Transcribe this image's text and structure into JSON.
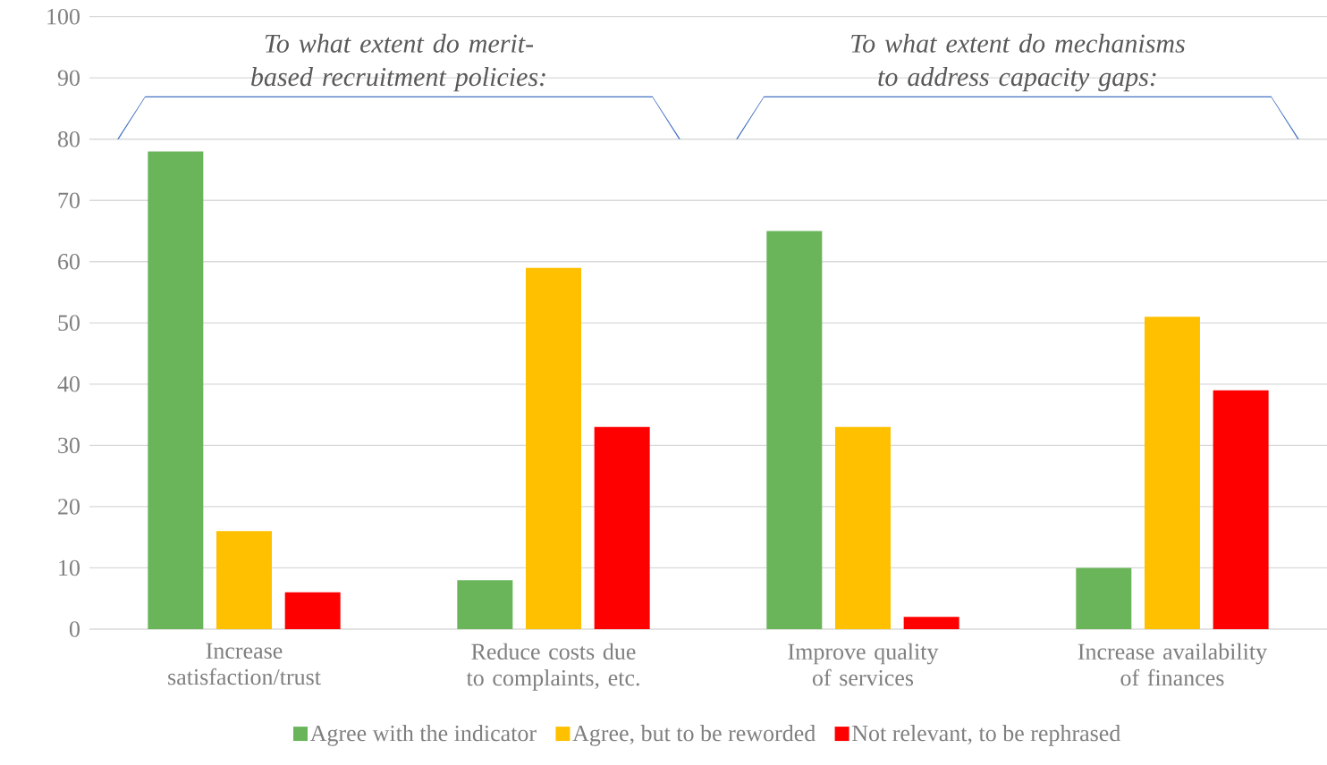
{
  "chart_data": {
    "type": "bar",
    "categories": [
      "Increase satisfaction/trust",
      "Reduce costs due to complaints, etc.",
      "Improve quality of services",
      "Increase availability of finances"
    ],
    "series": [
      {
        "name": "Agree with the indicator",
        "color": "#6ab55a",
        "values": [
          78,
          8,
          65,
          10
        ]
      },
      {
        "name": "Agree, but to be reworded",
        "color": "#ffc000",
        "values": [
          16,
          59,
          33,
          51
        ]
      },
      {
        "name": "Not relevant, to be rephrased",
        "color": "#ff0000",
        "values": [
          6,
          33,
          2,
          39
        ]
      }
    ],
    "annotations": [
      "To what extent do merit-based recruitment policies:",
      "To what extent do mechanisms to address capacity gaps:"
    ],
    "ylim": [
      0,
      100
    ],
    "yticks": [
      0,
      10,
      20,
      30,
      40,
      50,
      60,
      70,
      80,
      90,
      100
    ],
    "grid": "y",
    "legend": "bottom"
  }
}
